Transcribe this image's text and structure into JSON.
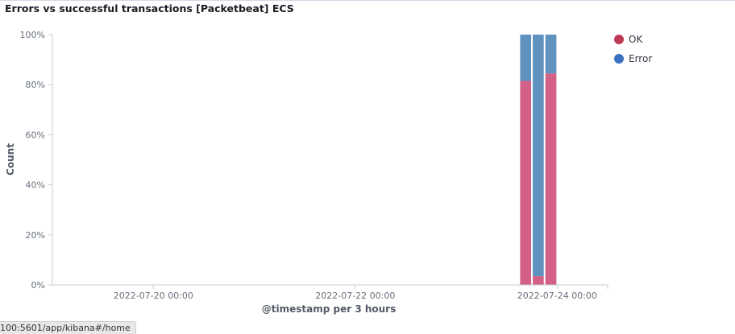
{
  "panel": {
    "title": "Errors vs successful transactions [Packetbeat] ECS"
  },
  "colors": {
    "ok": "#d36086",
    "ok_dot": "#bd3a55",
    "error": "#6092c0",
    "error_dot": "#3b6fbf"
  },
  "chart_data": {
    "type": "bar",
    "stacked": "percent",
    "xlabel": "@timestamp per 3 hours",
    "ylabel": "Count",
    "ylim": [
      0,
      100
    ],
    "yticks": [
      "0%",
      "20%",
      "40%",
      "60%",
      "80%",
      "100%"
    ],
    "xticks": [
      "2022-07-20 00:00",
      "2022-07-22 00:00",
      "2022-07-24 00:00"
    ],
    "x_range_hours": [
      -24,
      108
    ],
    "legend_position": "top-right",
    "categories": [
      "2022-07-23 15:00",
      "2022-07-23 18:00",
      "2022-07-23 21:00"
    ],
    "series": [
      {
        "name": "OK",
        "values": [
          81.5,
          3.5,
          84.5
        ]
      },
      {
        "name": "Error",
        "values": [
          18.5,
          96.5,
          15.5
        ]
      }
    ]
  },
  "status_bar": {
    "url": "100:5601/app/kibana#/home"
  }
}
